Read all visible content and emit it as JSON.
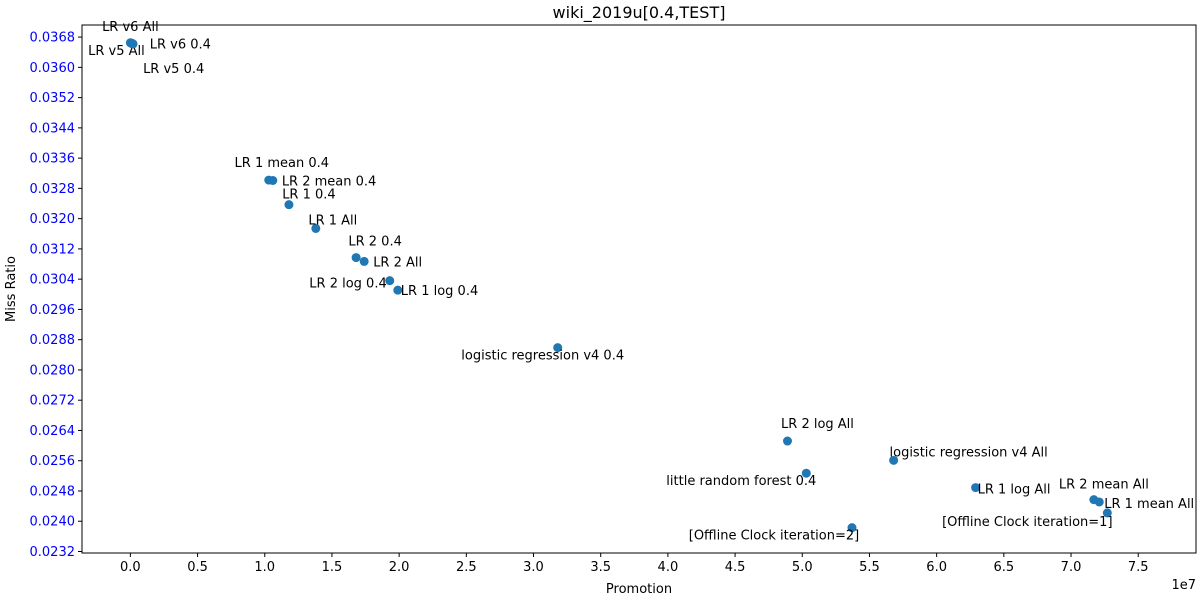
{
  "chart_data": {
    "type": "scatter",
    "title": "wiki_2019u[0.4,TEST]",
    "xlabel": "Promotion",
    "ylabel": "Miss Ratio",
    "x_offset_label": "1e7",
    "xlim": [
      -0.36,
      7.93
    ],
    "ylim": [
      0.02316,
      0.03712
    ],
    "x_ticks": [
      "0.0",
      "0.5",
      "1.0",
      "1.5",
      "2.0",
      "2.5",
      "3.0",
      "3.5",
      "4.0",
      "4.5",
      "5.0",
      "5.5",
      "6.0",
      "6.5",
      "7.0",
      "7.5"
    ],
    "y_ticks": [
      "0.0232",
      "0.0240",
      "0.0248",
      "0.0256",
      "0.0264",
      "0.0272",
      "0.0280",
      "0.0288",
      "0.0296",
      "0.0304",
      "0.0312",
      "0.0320",
      "0.0328",
      "0.0336",
      "0.0344",
      "0.0352",
      "0.0360",
      "0.0368"
    ],
    "ytick_color": "#0000ff",
    "marker_color": "#1f77b4",
    "grid": false,
    "points": [
      {
        "label": "LR v6 All",
        "x": 0.0,
        "y": 0.03665,
        "anchor": "middle",
        "dx": 0,
        "dy": -12
      },
      {
        "label": "LR v6 0.4",
        "x": 0.01,
        "y": 0.03663,
        "anchor": "start",
        "dx": 18,
        "dy": 5
      },
      {
        "label": "LR v5 All",
        "x": 0.01,
        "y": 0.03664,
        "anchor": "end",
        "dx": 13,
        "dy": 12
      },
      {
        "label": "LR v5 0.4",
        "x": 0.02,
        "y": 0.03662,
        "anchor": "start",
        "dx": 10,
        "dy": 29
      },
      {
        "label": "LR 1 mean 0.4",
        "x": 1.03,
        "y": 0.03302,
        "anchor": "middle",
        "dx": 13,
        "dy": -13
      },
      {
        "label": "LR 2 mean 0.4",
        "x": 1.06,
        "y": 0.03301,
        "anchor": "start",
        "dx": 9,
        "dy": 5
      },
      {
        "label": "LR 1 0.4",
        "x": 1.18,
        "y": 0.03237,
        "anchor": "middle",
        "dx": 20,
        "dy": -6
      },
      {
        "label": "LR 1 All",
        "x": 1.38,
        "y": 0.03174,
        "anchor": "middle",
        "dx": 17,
        "dy": -4
      },
      {
        "label": "LR 2 0.4",
        "x": 1.68,
        "y": 0.03097,
        "anchor": "middle",
        "dx": 19,
        "dy": -12
      },
      {
        "label": "LR 2 All",
        "x": 1.74,
        "y": 0.03087,
        "anchor": "start",
        "dx": 9,
        "dy": 5
      },
      {
        "label": "LR 2 log 0.4",
        "x": 1.93,
        "y": 0.03036,
        "anchor": "end",
        "dx": -3,
        "dy": 7
      },
      {
        "label": "LR 1 log 0.4",
        "x": 1.99,
        "y": 0.03011,
        "anchor": "start",
        "dx": 3,
        "dy": 5
      },
      {
        "label": "logistic regression v4 0.4",
        "x": 3.18,
        "y": 0.02859,
        "anchor": "middle",
        "dx": -15,
        "dy": 12
      },
      {
        "label": "LR 2 log All",
        "x": 4.89,
        "y": 0.02612,
        "anchor": "middle",
        "dx": 30,
        "dy": -13
      },
      {
        "label": "little random forest 0.4",
        "x": 5.03,
        "y": 0.02527,
        "anchor": "middle",
        "dx": -65,
        "dy": 12
      },
      {
        "label": "logistic regression v4 All",
        "x": 5.68,
        "y": 0.02561,
        "anchor": "middle",
        "dx": 75,
        "dy": -4
      },
      {
        "label": "[Offline Clock iteration=2]",
        "x": 5.37,
        "y": 0.02383,
        "anchor": "middle",
        "dx": -78,
        "dy": 12
      },
      {
        "label": "LR 1 log All",
        "x": 6.29,
        "y": 0.02489,
        "anchor": "start",
        "dx": 2,
        "dy": 6
      },
      {
        "label": "LR 2 mean All",
        "x": 7.17,
        "y": 0.02457,
        "anchor": "middle",
        "dx": 10,
        "dy": -11
      },
      {
        "label": "LR 1 mean All",
        "x": 7.21,
        "y": 0.02451,
        "anchor": "start",
        "dx": 5,
        "dy": 6
      },
      {
        "label": "[Offline Clock iteration=1]",
        "x": 7.27,
        "y": 0.02422,
        "anchor": "middle",
        "dx": -80,
        "dy": 13
      }
    ]
  }
}
